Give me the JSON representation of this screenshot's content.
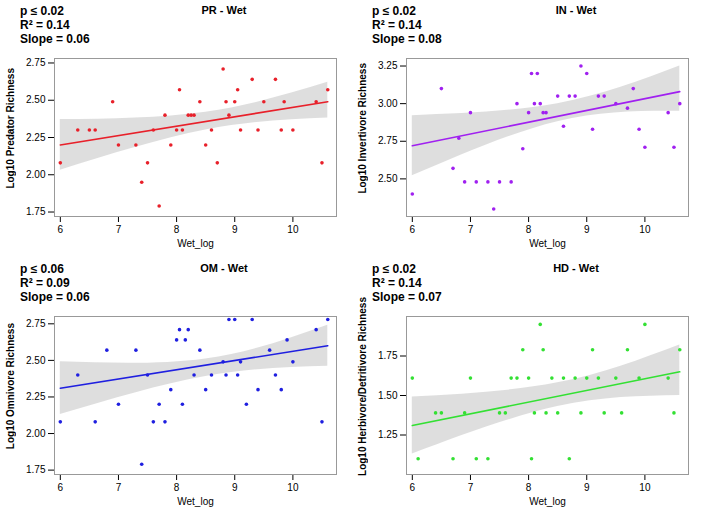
{
  "chart_data": [
    {
      "type": "scatter",
      "title": "PR - Wet",
      "annotations": [
        "p ≤ 0.02",
        "R² = 0.14",
        "Slope = 0.06"
      ],
      "x_label": "Wet_log",
      "y_label": "Log10 Predator Richness",
      "color": "#e8202a",
      "x": [
        6,
        6.3,
        6.5,
        6.6,
        6.9,
        7,
        7.3,
        7.4,
        7.5,
        7.6,
        7.7,
        7.8,
        7.9,
        8,
        8.05,
        8.1,
        8.2,
        8.25,
        8.3,
        8.4,
        8.5,
        8.6,
        8.7,
        8.8,
        8.85,
        8.9,
        9,
        9.05,
        9.1,
        9.3,
        9.4,
        9.5,
        9.7,
        9.8,
        9.85,
        10,
        10.4,
        10.5,
        10.6
      ],
      "values": [
        2.08,
        2.3,
        2.3,
        2.3,
        2.49,
        2.2,
        2.2,
        1.95,
        2.08,
        2.3,
        1.79,
        2.4,
        2.2,
        2.3,
        2.57,
        2.3,
        2.4,
        2.4,
        2.4,
        2.49,
        2.2,
        2.3,
        2.08,
        2.71,
        2.49,
        2.4,
        2.49,
        2.57,
        2.3,
        2.64,
        2.3,
        2.49,
        2.64,
        2.3,
        2.49,
        2.3,
        2.49,
        2.08,
        2.57
      ],
      "fit": {
        "x": [
          6,
          10.6
        ],
        "values": [
          2.2,
          2.49
        ]
      },
      "confidence_band": {
        "x": [
          6,
          8.5,
          10.6
        ],
        "lower": [
          2.03,
          2.3,
          2.38
        ],
        "upper": [
          2.37,
          2.42,
          2.62
        ]
      },
      "xlim": [
        5.9,
        10.75
      ],
      "ylim": [
        1.72,
        2.78
      ],
      "xticks": [
        6,
        7,
        8,
        9,
        10
      ],
      "yticks": [
        1.75,
        {
          "value": 2,
          "label": "2.00"
        },
        2.25,
        {
          "value": 2.5,
          "label": "2.50"
        },
        2.75
      ],
      "grid": false
    },
    {
      "type": "scatter",
      "title": "IN - Wet",
      "annotations": [
        "p ≤ 0.02",
        "R² = 0.14",
        "Slope = 0.08"
      ],
      "x_label": "Wet_log",
      "y_label": "Log10 Invertivore Richness",
      "color": "#a020f0",
      "x": [
        6,
        6.5,
        6.7,
        6.8,
        6.9,
        7,
        7.1,
        7.3,
        7.4,
        7.5,
        7.7,
        7.8,
        7.9,
        8,
        8.05,
        8.1,
        8.15,
        8.2,
        8.25,
        8.3,
        8.5,
        8.6,
        8.7,
        8.8,
        8.9,
        9,
        9.1,
        9.2,
        9.3,
        9.5,
        9.7,
        9.8,
        9.9,
        10,
        10.4,
        10.5,
        10.6
      ],
      "values": [
        2.4,
        3.1,
        2.57,
        2.77,
        2.48,
        2.94,
        2.48,
        2.48,
        2.3,
        2.48,
        2.48,
        3.0,
        2.7,
        2.94,
        3.2,
        3.0,
        3.2,
        3.0,
        2.94,
        2.94,
        3.05,
        2.85,
        3.05,
        3.05,
        3.25,
        3.2,
        2.83,
        3.05,
        3.05,
        3.0,
        2.97,
        3.1,
        2.83,
        2.71,
        2.94,
        2.71,
        3.0
      ],
      "fit": {
        "x": [
          6,
          10.6
        ],
        "values": [
          2.72,
          3.08
        ]
      },
      "confidence_band": {
        "x": [
          6,
          8.5,
          10.6
        ],
        "lower": [
          2.52,
          2.88,
          2.95
        ],
        "upper": [
          2.92,
          3.0,
          3.25
        ]
      },
      "xlim": [
        5.9,
        10.75
      ],
      "ylim": [
        2.25,
        3.3
      ],
      "xticks": [
        6,
        7,
        8,
        9,
        10
      ],
      "yticks": [
        {
          "value": 2.5,
          "label": "2.50"
        },
        2.75,
        {
          "value": 3,
          "label": "3.00"
        },
        3.25
      ],
      "grid": false
    },
    {
      "type": "scatter",
      "title": "OM - Wet",
      "annotations": [
        "p ≤ 0.06",
        "R² = 0.09",
        "Slope = 0.06"
      ],
      "x_label": "Wet_log",
      "y_label": "Log10 Omnivore Richness",
      "color": "#1f1fe0",
      "x": [
        6,
        6.3,
        6.6,
        6.8,
        7,
        7.3,
        7.4,
        7.5,
        7.6,
        7.7,
        7.8,
        7.9,
        8,
        8.05,
        8.1,
        8.15,
        8.2,
        8.3,
        8.4,
        8.5,
        8.6,
        8.8,
        8.85,
        8.9,
        9,
        9.05,
        9.1,
        9.2,
        9.3,
        9.4,
        9.6,
        9.7,
        9.8,
        9.9,
        10,
        10.4,
        10.5,
        10.6
      ],
      "values": [
        2.08,
        2.4,
        2.08,
        2.57,
        2.2,
        2.57,
        1.79,
        2.4,
        2.08,
        2.2,
        2.08,
        2.3,
        2.64,
        2.71,
        2.2,
        2.64,
        2.71,
        2.4,
        2.57,
        2.3,
        2.4,
        2.49,
        2.4,
        2.78,
        2.78,
        2.4,
        2.49,
        2.2,
        2.78,
        2.3,
        2.57,
        2.4,
        2.3,
        2.64,
        2.49,
        2.71,
        2.08,
        2.78
      ],
      "fit": {
        "x": [
          6,
          10.6
        ],
        "values": [
          2.31,
          2.6
        ]
      },
      "confidence_band": {
        "x": [
          6,
          8.5,
          10.6
        ],
        "lower": [
          2.13,
          2.39,
          2.46
        ],
        "upper": [
          2.49,
          2.51,
          2.74
        ]
      },
      "xlim": [
        5.9,
        10.75
      ],
      "ylim": [
        1.72,
        2.8
      ],
      "xticks": [
        6,
        7,
        8,
        9,
        10
      ],
      "yticks": [
        1.75,
        {
          "value": 2,
          "label": "2.00"
        },
        2.25,
        {
          "value": 2.5,
          "label": "2.50"
        },
        2.75
      ],
      "grid": false
    },
    {
      "type": "scatter",
      "title": "HD - Wet",
      "annotations": [
        "p ≤ 0.02",
        "R² = 0.14",
        "Slope = 0.07"
      ],
      "x_label": "Wet_log",
      "y_label": "Log10 Herbivore/Detritivore Richness",
      "color": "#33e033",
      "x": [
        6,
        6.1,
        6.4,
        6.5,
        6.7,
        6.9,
        7,
        7.1,
        7.3,
        7.5,
        7.6,
        7.7,
        7.8,
        7.9,
        8,
        8.05,
        8.1,
        8.2,
        8.25,
        8.3,
        8.4,
        8.5,
        8.6,
        8.7,
        8.8,
        8.9,
        9,
        9.1,
        9.2,
        9.3,
        9.5,
        9.6,
        9.7,
        9.9,
        10,
        10.4,
        10.5,
        10.6
      ],
      "values": [
        1.61,
        1.1,
        1.39,
        1.39,
        1.1,
        1.39,
        1.61,
        1.1,
        1.1,
        1.39,
        1.39,
        1.61,
        1.61,
        1.79,
        1.61,
        1.1,
        1.39,
        1.95,
        1.79,
        1.39,
        1.61,
        1.39,
        1.61,
        1.1,
        1.61,
        1.39,
        1.61,
        1.79,
        1.61,
        1.39,
        1.61,
        1.39,
        1.79,
        1.61,
        1.95,
        1.61,
        1.39,
        1.79
      ],
      "fit": {
        "x": [
          6,
          10.6
        ],
        "values": [
          1.31,
          1.65
        ]
      },
      "confidence_band": {
        "x": [
          6,
          8.5,
          10.6
        ],
        "lower": [
          1.13,
          1.43,
          1.5
        ],
        "upper": [
          1.49,
          1.58,
          1.82
        ]
      },
      "xlim": [
        5.9,
        10.75
      ],
      "ylim": [
        1.0,
        2.0
      ],
      "xticks": [
        6,
        7,
        8,
        9,
        10
      ],
      "yticks": [
        1.25,
        {
          "value": 1.5,
          "label": "1.50"
        },
        1.75
      ],
      "grid": false
    }
  ]
}
